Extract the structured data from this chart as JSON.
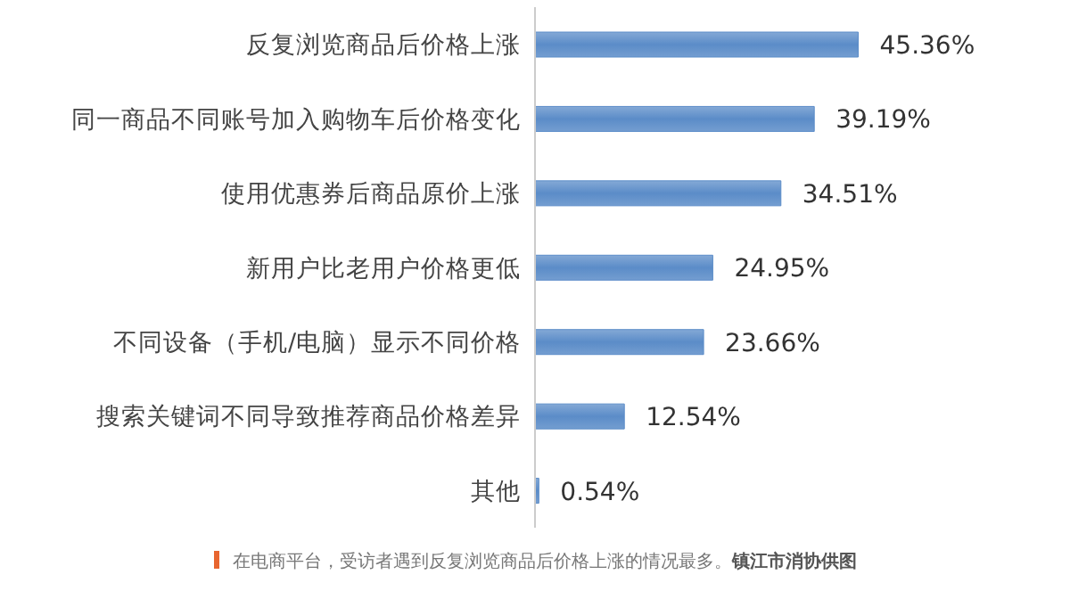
{
  "chart_data": {
    "type": "bar",
    "orientation": "horizontal",
    "categories": [
      "反复浏览商品后价格上涨",
      "同一商品不同账号加入购物车后价格变化",
      "使用优惠券后商品原价上涨",
      "新用户比老用户价格更低",
      "不同设备（手机/电脑）显示不同价格",
      "搜索关键词不同导致推荐商品价格差异",
      "其他"
    ],
    "series": [
      {
        "color": "#5b8cc8",
        "values": [
          45.36,
          39.19,
          34.51,
          24.95,
          23.66,
          12.54,
          0.54
        ],
        "value_labels": [
          "45.36%",
          "39.19%",
          "34.51%",
          "24.95%",
          "23.66%",
          "12.54%",
          "0.54%"
        ]
      }
    ],
    "annotations": [
      "在电商平台，受访者遇到反复浏览商品后价格上涨的情况最多。",
      "镇江市消协供图"
    ],
    "grid": false,
    "legend": false
  }
}
